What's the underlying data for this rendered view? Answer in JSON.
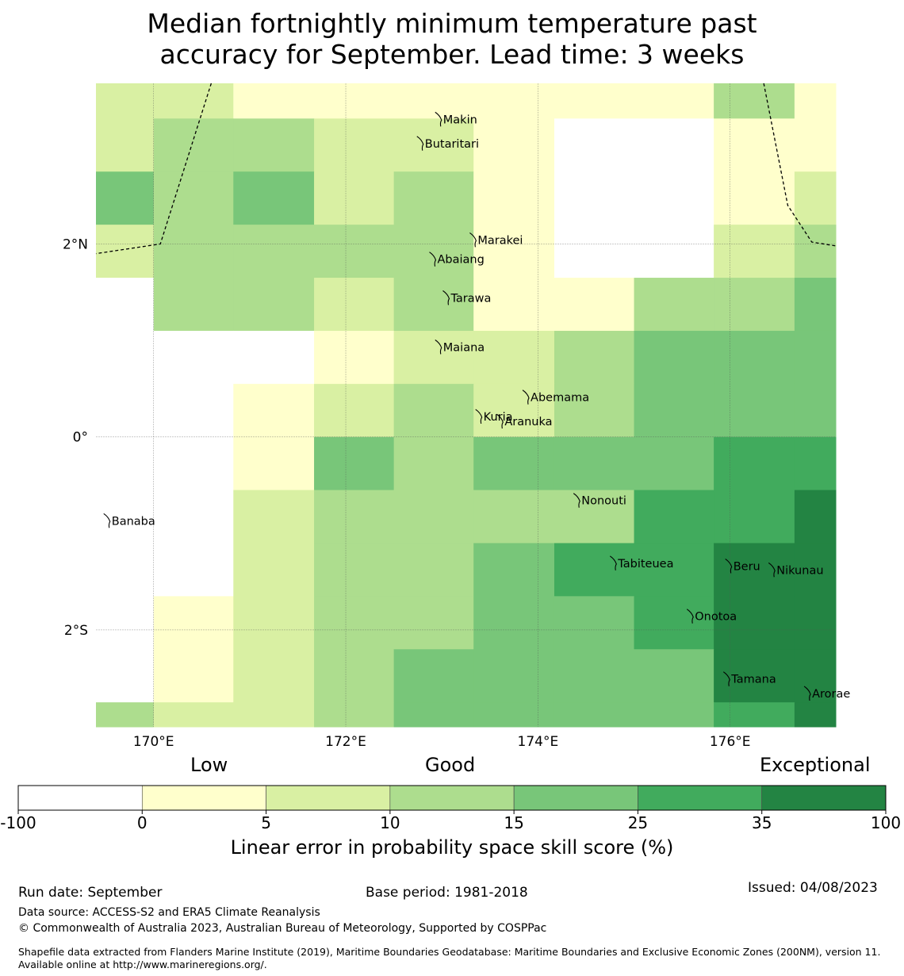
{
  "title": {
    "line1": "Median fortnightly minimum temperature past",
    "line2": "accuracy for September. Lead time: 3 weeks"
  },
  "map": {
    "lon_range": [
      169.4,
      177.1
    ],
    "lat_range": [
      -3.004,
      3.665
    ],
    "lon_ticks": [
      {
        "value": 170,
        "label": "170°E"
      },
      {
        "value": 172,
        "label": "172°E"
      },
      {
        "value": 174,
        "label": "174°E"
      },
      {
        "value": 176,
        "label": "176°E"
      }
    ],
    "lat_ticks": [
      {
        "value": 2,
        "label": "2°N"
      },
      {
        "value": 0,
        "label": "0°"
      },
      {
        "value": -2,
        "label": "2°S"
      }
    ],
    "grid_lons": [
      169.4,
      170.0,
      170.83,
      171.67,
      172.5,
      173.33,
      174.17,
      175.0,
      175.83,
      176.67,
      177.1
    ],
    "grid_lats": [
      3.665,
      3.3,
      2.75,
      2.2,
      1.65,
      1.1,
      0.55,
      0.0,
      -0.55,
      -1.1,
      -1.65,
      -2.2,
      -2.75,
      -3.004
    ],
    "class_colors": [
      "#ffffff",
      "#ffffcc",
      "#d9f0a3",
      "#addd8e",
      "#78c679",
      "#41ab5d",
      "#238443"
    ],
    "cells": [
      [
        2,
        2,
        1,
        1,
        1,
        1,
        1,
        1,
        3,
        1
      ],
      [
        2,
        3,
        3,
        2,
        2,
        1,
        0,
        0,
        1,
        1
      ],
      [
        4,
        3,
        4,
        2,
        3,
        1,
        0,
        0,
        1,
        2
      ],
      [
        2,
        3,
        3,
        3,
        3,
        1,
        0,
        0,
        2,
        3
      ],
      [
        0,
        3,
        3,
        2,
        3,
        1,
        1,
        3,
        3,
        4
      ],
      [
        0,
        0,
        0,
        1,
        2,
        2,
        3,
        4,
        4,
        4
      ],
      [
        0,
        0,
        1,
        2,
        3,
        2,
        3,
        4,
        4,
        4
      ],
      [
        0,
        0,
        1,
        4,
        3,
        4,
        4,
        4,
        5,
        5
      ],
      [
        0,
        0,
        2,
        3,
        3,
        3,
        3,
        5,
        5,
        6
      ],
      [
        0,
        0,
        2,
        3,
        3,
        4,
        5,
        5,
        6,
        6
      ],
      [
        0,
        1,
        2,
        3,
        3,
        4,
        4,
        5,
        6,
        6
      ],
      [
        0,
        1,
        2,
        3,
        4,
        4,
        4,
        4,
        6,
        6
      ],
      [
        3,
        2,
        2,
        3,
        4,
        4,
        4,
        4,
        5,
        6
      ]
    ],
    "boundaries": [
      [
        [
          170.6,
          3.665
        ],
        [
          170.07,
          2.0
        ],
        [
          169.4,
          1.9
        ]
      ],
      [
        [
          176.35,
          3.665
        ],
        [
          176.6,
          2.4
        ],
        [
          176.85,
          2.02
        ],
        [
          177.1,
          1.98
        ]
      ]
    ],
    "islands": [
      {
        "name": "Makin",
        "lon": 172.98,
        "lat": 3.3
      },
      {
        "name": "Butaritari",
        "lon": 172.79,
        "lat": 3.05
      },
      {
        "name": "Marakei",
        "lon": 173.34,
        "lat": 2.05
      },
      {
        "name": "Abaiang",
        "lon": 172.92,
        "lat": 1.85
      },
      {
        "name": "Tarawa",
        "lon": 173.06,
        "lat": 1.45
      },
      {
        "name": "Maiana",
        "lon": 172.98,
        "lat": 0.94
      },
      {
        "name": "Abemama",
        "lon": 173.89,
        "lat": 0.42
      },
      {
        "name": "Kuria",
        "lon": 173.4,
        "lat": 0.22
      },
      {
        "name": "Aranuka",
        "lon": 173.62,
        "lat": 0.17
      },
      {
        "name": "Banaba",
        "lon": 169.53,
        "lat": -0.86
      },
      {
        "name": "Nonouti",
        "lon": 174.42,
        "lat": -0.65
      },
      {
        "name": "Tabiteuea",
        "lon": 174.8,
        "lat": -1.3
      },
      {
        "name": "Beru",
        "lon": 176.0,
        "lat": -1.33
      },
      {
        "name": "Nikunau",
        "lon": 176.45,
        "lat": -1.37
      },
      {
        "name": "Onotoa",
        "lon": 175.6,
        "lat": -1.85
      },
      {
        "name": "Tamana",
        "lon": 175.98,
        "lat": -2.5
      },
      {
        "name": "Arorae",
        "lon": 176.82,
        "lat": -2.65
      }
    ]
  },
  "legend": {
    "low_label": "Low",
    "good_label": "Good",
    "exceptional_label": "Exceptional",
    "ticks": [
      "-100",
      "0",
      "5",
      "10",
      "15",
      "25",
      "35",
      "100"
    ],
    "colors": [
      "#ffffff",
      "#ffffcc",
      "#d9f0a3",
      "#addd8e",
      "#78c679",
      "#41ab5d",
      "#238443"
    ],
    "label": "Linear error in probability space skill score (%)"
  },
  "footer": {
    "run_date": "Run date: September",
    "base_period": "Base period: 1981-2018",
    "issued": "Issued: 04/08/2023",
    "data_source": "Data source: ACCESS-S2 and ERA5 Climate Reanalysis",
    "copyright": "© Commonwealth of Australia 2023, Australian Bureau of Meteorology, Supported by COSPPac",
    "shapefile": "Shapefile data extracted from Flanders Marine Institute (2019), Maritime Boundaries Geodatabase: Maritime Boundaries and Exclusive Economic Zones (200NM), version 11. Available online at http://www.marineregions.org/."
  }
}
